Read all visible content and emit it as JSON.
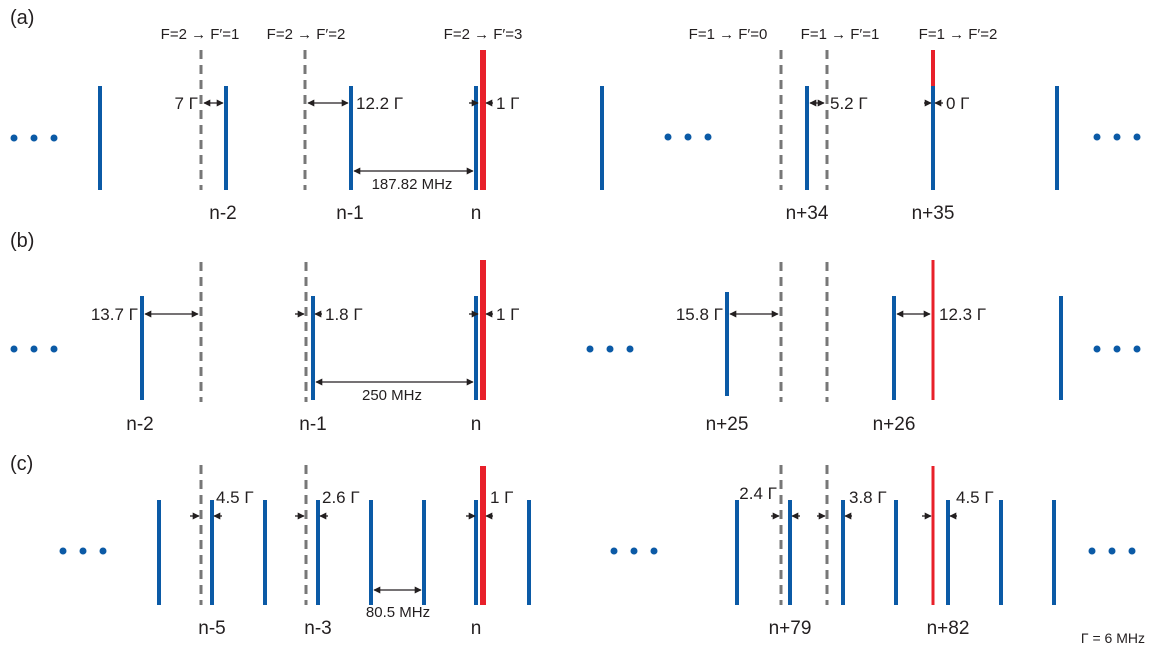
{
  "colors": {
    "comb": "#0b5aa6",
    "resonance": "#e8202a",
    "dashed": "#777777",
    "text": "#231f20",
    "arrow": "#231f20"
  },
  "footnote": "Γ = 6 MHz",
  "panels": [
    {
      "label": "(a)",
      "transitions": [
        "F=2 → F′=1",
        "F=2 → F′=2",
        "F=2 → F′=3",
        "F=1 → F′=0",
        "F=1 → F′=1",
        "F=1 → F′=2"
      ],
      "gaps": [
        "7 Γ",
        "12.2 Γ",
        "1 Γ",
        "5.2 Γ",
        "0 Γ"
      ],
      "spacing": "187.82 MHz",
      "indices": [
        "n-2",
        "n-1",
        "n",
        "n+34",
        "n+35"
      ]
    },
    {
      "label": "(b)",
      "gaps": [
        "13.7 Γ",
        "1.8 Γ",
        "1 Γ",
        "15.8 Γ",
        "12.3 Γ"
      ],
      "spacing": "250 MHz",
      "indices": [
        "n-2",
        "n-1",
        "n",
        "n+25",
        "n+26"
      ]
    },
    {
      "label": "(c)",
      "gaps": [
        "4.5 Γ",
        "2.6 Γ",
        "1 Γ",
        "2.4 Γ",
        "3.8 Γ",
        "4.5 Γ"
      ],
      "spacing": "80.5 MHz",
      "indices": [
        "n-5",
        "n-3",
        "n",
        "n+79",
        "n+82"
      ]
    }
  ]
}
